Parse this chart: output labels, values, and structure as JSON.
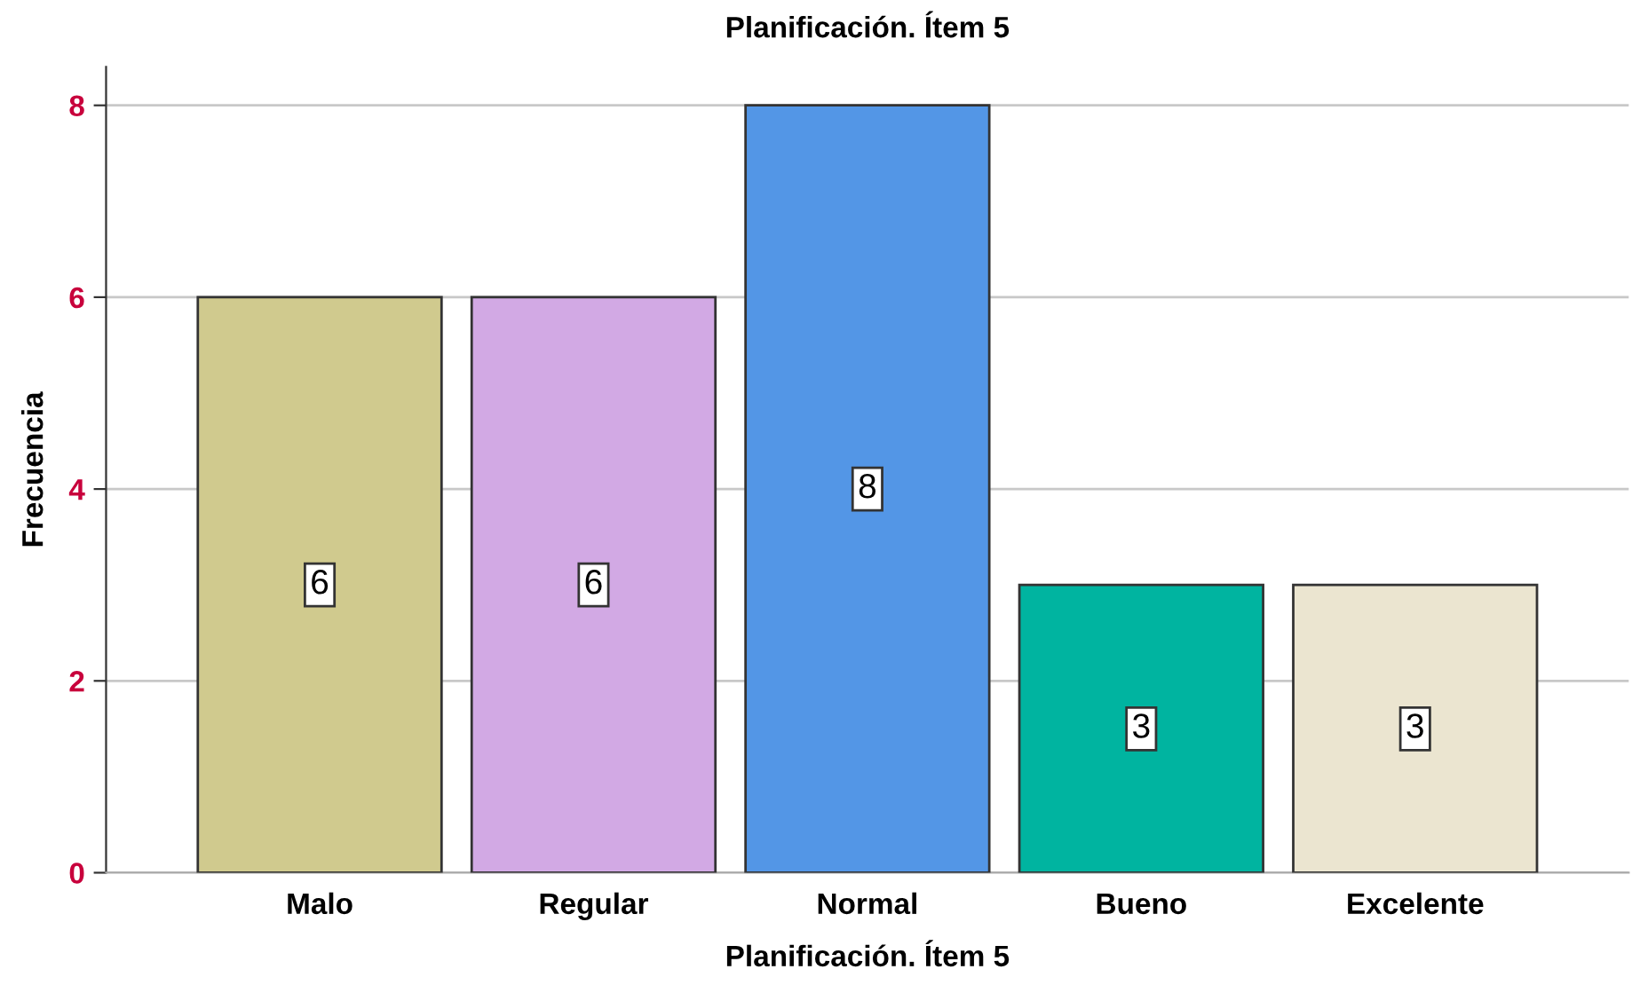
{
  "chart_data": {
    "type": "bar",
    "title": "Planificación. Ítem 5",
    "xlabel": "Planificación. Ítem 5",
    "ylabel": "Frecuencia",
    "categories": [
      "Malo",
      "Regular",
      "Normal",
      "Bueno",
      "Excelente"
    ],
    "values": [
      6,
      6,
      8,
      3,
      3
    ],
    "colors": [
      "#d0ca8e",
      "#d2a9e4",
      "#5396e6",
      "#00b4a0",
      "#ebe5d0"
    ],
    "ylim": [
      0,
      8.4
    ],
    "yticks": [
      0,
      2,
      4,
      6,
      8
    ],
    "grid": "y",
    "legend": false,
    "data_labels": true
  }
}
